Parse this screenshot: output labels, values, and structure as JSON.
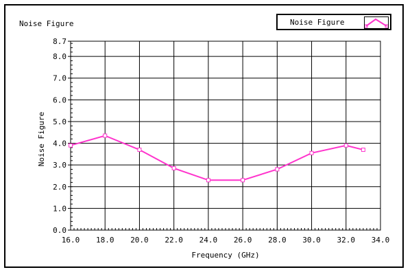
{
  "chart_data": {
    "type": "line",
    "title": "Noise Figure",
    "xlabel": "Frequency (GHz)",
    "ylabel": "Noise Figure",
    "xlim": [
      16.0,
      34.0
    ],
    "ylim": [
      0.0,
      8.7
    ],
    "x_ticks": [
      16.0,
      18.0,
      20.0,
      22.0,
      24.0,
      26.0,
      28.0,
      30.0,
      32.0,
      34.0
    ],
    "x_tick_labels": [
      "16.0",
      "18.0",
      "20.0",
      "22.0",
      "24.0",
      "26.0",
      "28.0",
      "30.0",
      "32.0",
      "34.0"
    ],
    "y_ticks": [
      0.0,
      1.0,
      2.0,
      3.0,
      4.0,
      5.0,
      6.0,
      7.0,
      8.0,
      8.7
    ],
    "y_tick_labels": [
      "0.0",
      "1.0",
      "2.0",
      "3.0",
      "4.0",
      "5.0",
      "6.0",
      "7.0",
      "8.0",
      "8.7"
    ],
    "grid": true,
    "legend_position": "top-right",
    "series": [
      {
        "name": "Noise Figure",
        "color": "#ff33cc",
        "x": [
          16.0,
          18.0,
          20.0,
          22.0,
          24.0,
          26.0,
          28.0,
          30.0,
          32.0,
          33.0
        ],
        "y": [
          3.9,
          4.35,
          3.7,
          2.85,
          2.3,
          2.3,
          2.8,
          3.55,
          3.9,
          3.7
        ]
      }
    ]
  }
}
